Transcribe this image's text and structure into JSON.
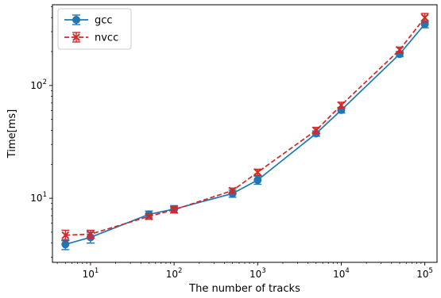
{
  "chart_data": {
    "type": "line",
    "title": "",
    "xlabel": "The number of tracks",
    "ylabel": "Time[ms]",
    "xscale": "log",
    "yscale": "log",
    "xlim": [
      3.5,
      140000
    ],
    "ylim": [
      2.7,
      520
    ],
    "x_ticks": [
      {
        "value": 10,
        "base": "10",
        "exp": "1"
      },
      {
        "value": 100,
        "base": "10",
        "exp": "2"
      },
      {
        "value": 1000,
        "base": "10",
        "exp": "3"
      },
      {
        "value": 10000,
        "base": "10",
        "exp": "4"
      },
      {
        "value": 100000,
        "base": "10",
        "exp": "5"
      }
    ],
    "y_ticks": [
      {
        "value": 10,
        "base": "10",
        "exp": "1"
      },
      {
        "value": 100,
        "base": "10",
        "exp": "2"
      }
    ],
    "grid": false,
    "legend_position": "top-left",
    "series": [
      {
        "name": "gcc",
        "color": "#1f77b4",
        "line_style": "solid",
        "marker": "circle",
        "x": [
          5,
          10,
          50,
          100,
          500,
          1000,
          5000,
          10000,
          50000,
          100000
        ],
        "y": [
          3.9,
          4.5,
          7.2,
          8.0,
          11.0,
          14.5,
          37.5,
          60.5,
          190,
          350
        ],
        "err": [
          0.4,
          0.5,
          0.5,
          0.6,
          0.8,
          1.2,
          2.0,
          3.5,
          10,
          25
        ]
      },
      {
        "name": "nvcc",
        "color": "#d62728",
        "line_style": "dashed",
        "marker": "x",
        "x": [
          5,
          10,
          50,
          100,
          500,
          1000,
          5000,
          10000,
          50000,
          100000
        ],
        "y": [
          4.7,
          4.8,
          6.9,
          7.9,
          11.7,
          17.0,
          40.0,
          67.0,
          207,
          400
        ],
        "err": [
          0.5,
          0.4,
          0.4,
          0.5,
          0.6,
          1.1,
          2.5,
          4.0,
          12,
          35
        ]
      }
    ]
  }
}
